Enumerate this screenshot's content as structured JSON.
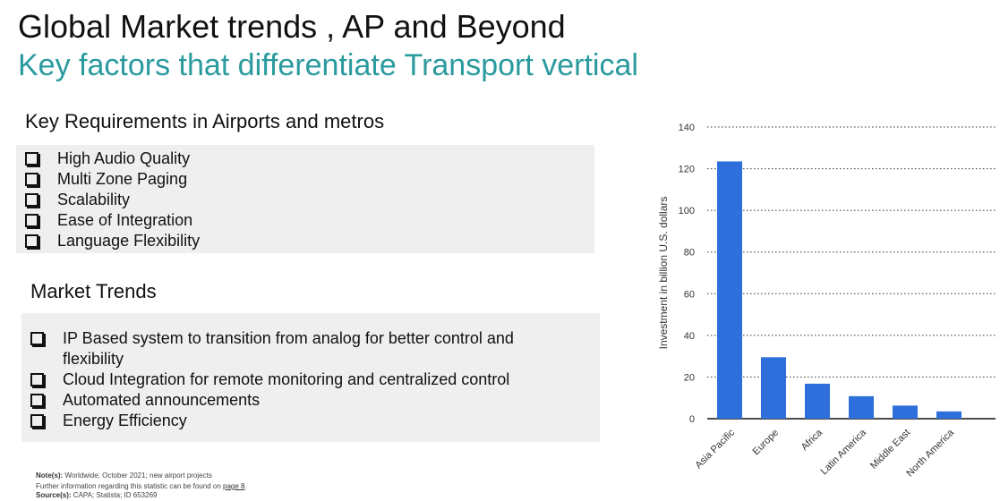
{
  "title": "Global Market trends , AP and Beyond",
  "subtitle": "Key factors that differentiate Transport vertical",
  "requirements": {
    "heading": "Key Requirements in Airports and metros",
    "items": [
      "High Audio Quality",
      "Multi Zone Paging",
      "Scalability",
      "Ease of Integration",
      "Language Flexibility"
    ]
  },
  "trends": {
    "heading": "Market Trends",
    "items": [
      "IP Based system to transition from analog for better control and flexibility",
      "Cloud Integration for remote monitoring and centralized control",
      "Automated announcements",
      "Energy Efficiency"
    ]
  },
  "footnote": {
    "notes_label": "Note(s):",
    "notes_text": "Worldwide; October 2021; new airport projects",
    "further_text": "Further information regarding this statistic can be found on",
    "further_link": "page 8",
    "source_label": "Source(s):",
    "source_text": "CAPA; Statista; ID 653269"
  },
  "colors": {
    "subtitle": "#2a9a9e",
    "bar": "#2f6fdc",
    "panel": "#efefef"
  },
  "chart_data": {
    "type": "bar",
    "categories": [
      "Asia Pacific",
      "Europe",
      "Africa",
      "Latin America",
      "Middle East",
      "North America"
    ],
    "values": [
      123.5,
      29.5,
      16.8,
      10.8,
      6.3,
      3.5
    ],
    "ylabel": "Investment in billion U.S. dollars",
    "yticks": [
      0,
      20,
      40,
      60,
      80,
      100,
      120,
      140
    ],
    "ylim": [
      0,
      140
    ],
    "grid": "horizontal dotted",
    "legend": "none"
  }
}
